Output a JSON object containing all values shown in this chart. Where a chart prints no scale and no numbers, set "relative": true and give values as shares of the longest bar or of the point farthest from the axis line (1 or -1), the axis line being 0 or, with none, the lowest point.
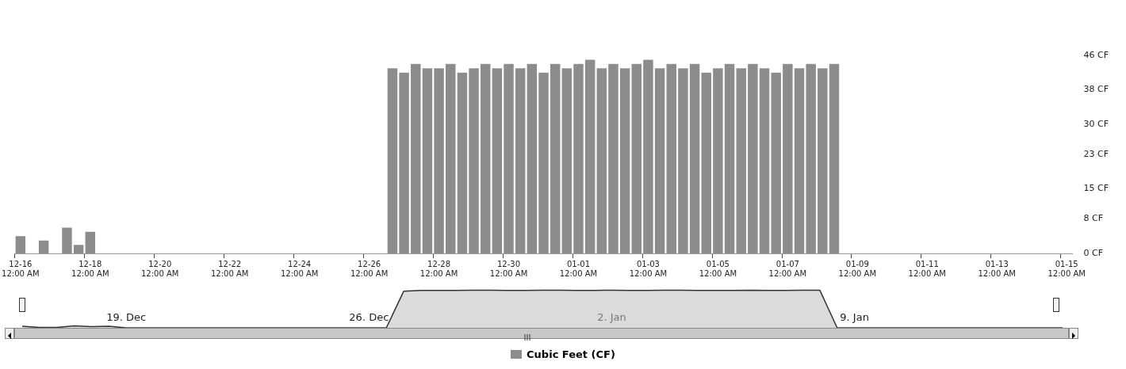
{
  "chart_data": [
    {
      "type": "bar",
      "legend": "bottom",
      "grid": false,
      "categories": [
        "12-16\n12:00 AM",
        null,
        null,
        null,
        null,
        null,
        "12-18\n12:00 AM",
        null,
        null,
        null,
        null,
        null,
        "12-20\n12:00 AM",
        null,
        null,
        null,
        null,
        null,
        "12-22\n12:00 AM",
        null,
        null,
        null,
        null,
        null,
        "12-24\n12:00 AM",
        null,
        null,
        null,
        null,
        null,
        "12-26\n12:00 AM",
        null,
        null,
        null,
        null,
        null,
        "12-28\n12:00 AM",
        null,
        null,
        null,
        null,
        null,
        "12-30\n12:00 AM",
        null,
        null,
        null,
        null,
        null,
        "01-01\n12:00 AM",
        null,
        null,
        null,
        null,
        null,
        "01-03\n12:00 AM",
        null,
        null,
        null,
        null,
        null,
        "01-05\n12:00 AM",
        null,
        null,
        null,
        null,
        null,
        "01-07\n12:00 AM",
        null,
        null,
        null,
        null,
        null,
        "01-09\n12:00 AM",
        null,
        null,
        null,
        null,
        null,
        "01-11\n12:00 AM",
        null,
        null,
        null,
        null,
        null,
        "01-13\n12:00 AM",
        null,
        null,
        null,
        null,
        null,
        "01-15\n12:00 AM"
      ],
      "series": [
        {
          "name": "Cubic Feet (CF)",
          "color": "#8c8c8c",
          "values": [
            4,
            0,
            3,
            0,
            6,
            2,
            5,
            0,
            0,
            0,
            0,
            0,
            0,
            0,
            0,
            0,
            0,
            0,
            0,
            0,
            0,
            0,
            0,
            0,
            0,
            0,
            0,
            0,
            0,
            0,
            0,
            0,
            43,
            42,
            44,
            43,
            43,
            44,
            42,
            43,
            44,
            43,
            44,
            43,
            44,
            42,
            44,
            43,
            44,
            45,
            43,
            44,
            43,
            44,
            45,
            43,
            44,
            43,
            44,
            42,
            43,
            44,
            43,
            44,
            43,
            42,
            44,
            43,
            44,
            43,
            44,
            0,
            0,
            0,
            0,
            0,
            0,
            0,
            0,
            0,
            0,
            0,
            0,
            0,
            0,
            0,
            0,
            0,
            0,
            0,
            0
          ]
        }
      ],
      "ylim": [
        0,
        46
      ],
      "yticks": [
        {
          "value": 0,
          "label": "0 CF"
        },
        {
          "value": 8,
          "label": "8 CF"
        },
        {
          "value": 15,
          "label": "15 CF"
        },
        {
          "value": 23,
          "label": "23 CF"
        },
        {
          "value": 30,
          "label": "30 CF"
        },
        {
          "value": 38,
          "label": "38 CF"
        },
        {
          "value": 46,
          "label": "46 CF"
        }
      ]
    },
    {
      "type": "area",
      "relative": true,
      "tick_labels": "x",
      "grid": false,
      "categories": [
        null,
        null,
        null,
        null,
        null,
        null,
        "19. Dec",
        null,
        null,
        null,
        null,
        null,
        null,
        null,
        null,
        null,
        null,
        null,
        null,
        null,
        "26. Dec",
        null,
        null,
        null,
        null,
        null,
        null,
        null,
        null,
        null,
        null,
        null,
        null,
        null,
        "2. Jan",
        null,
        null,
        null,
        null,
        null,
        null,
        null,
        null,
        null,
        null,
        null,
        null,
        null,
        "9. Jan",
        null,
        null,
        null,
        null,
        null,
        null,
        null,
        null,
        null,
        null,
        null,
        null
      ],
      "series": [
        {
          "color": "#333333",
          "values": [
            0.04,
            0.01,
            0.01,
            0.05,
            0.03,
            0.04,
            0,
            0,
            0,
            0,
            0,
            0,
            0,
            0,
            0,
            0,
            0,
            0,
            0,
            0,
            0,
            0,
            0.97,
            0.99,
            0.99,
            0.99,
            1,
            1,
            0.99,
            0.99,
            1,
            1,
            0.99,
            0.99,
            1,
            0.99,
            0.99,
            1,
            1,
            0.99,
            0.99,
            0.99,
            1,
            0.99,
            0.99,
            1,
            1,
            0,
            0,
            0,
            0,
            0,
            0,
            0,
            0,
            0,
            0,
            0,
            0,
            0,
            0
          ]
        }
      ]
    }
  ]
}
